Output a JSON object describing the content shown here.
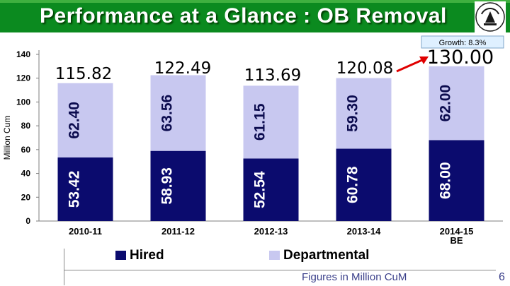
{
  "title": "Performance at a Glance : OB Removal",
  "logo": {
    "icon": "company-emblem-icon",
    "color": "#1a1a1a"
  },
  "footnote": "Figures in Million CuM",
  "page_number": "6",
  "colors": {
    "title_bar": "#0b8a1f",
    "hired": "#0b0b6e",
    "departmental": "#c8c8f0",
    "growth_badge": "#dff0ff",
    "arrow": "#e00000"
  },
  "chart_data": {
    "type": "bar",
    "stacked": true,
    "categories": [
      "2010-11",
      "2011-12",
      "2012-13",
      "2013-14",
      "2014-15\nBE"
    ],
    "series": [
      {
        "name": "Hired",
        "values": [
          53.42,
          58.93,
          52.54,
          60.78,
          68.0
        ],
        "labels": [
          "53.42",
          "58.93",
          "52.54",
          "60.78",
          "68.00"
        ]
      },
      {
        "name": "Departmental",
        "values": [
          62.4,
          63.56,
          61.15,
          59.3,
          62.0
        ],
        "labels": [
          "62.40",
          "63.56",
          "61.15",
          "59.30",
          "62.00"
        ]
      }
    ],
    "totals": [
      115.82,
      122.49,
      113.69,
      120.08,
      130.0
    ],
    "total_labels": [
      "115.82",
      "122.49",
      "113.69",
      "120.08",
      "130.00"
    ],
    "ylabel": "Million Cum",
    "ylim": [
      0,
      140
    ],
    "yticks": [
      0,
      20,
      40,
      60,
      80,
      100,
      120,
      140
    ],
    "annotation": "Growth: 8.3%",
    "legend_position": "bottom",
    "grid": false
  }
}
